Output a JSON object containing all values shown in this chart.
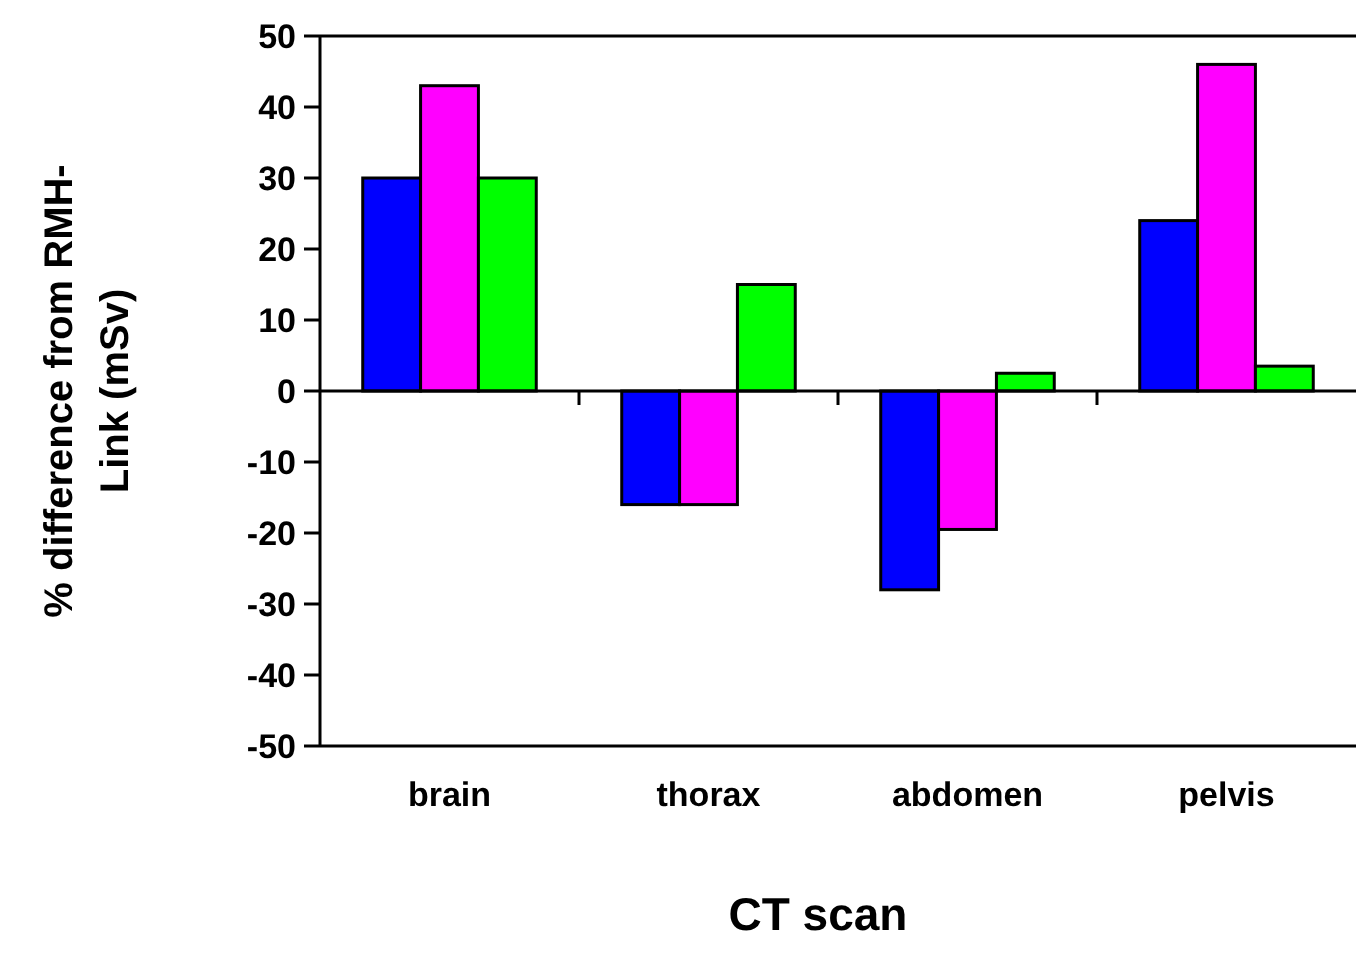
{
  "chart_data": {
    "type": "bar",
    "xlabel": "CT scan",
    "ylabel": "% difference from RMH-Link (mSv)",
    "categories": [
      "brain",
      "thorax",
      "abdomen",
      "pelvis"
    ],
    "series": [
      {
        "color": "#0000ff",
        "values": [
          30,
          -16,
          -28,
          24
        ]
      },
      {
        "color": "#ff00ff",
        "values": [
          43,
          -16,
          -19.5,
          46
        ]
      },
      {
        "color": "#00ff00",
        "values": [
          30,
          15,
          2.5,
          3.5
        ]
      }
    ],
    "ylim": [
      -50,
      50
    ],
    "yticks": [
      {
        "value": -50,
        "label": "-50"
      },
      {
        "value": -40,
        "label": "-40"
      },
      {
        "value": -30,
        "label": "-30"
      },
      {
        "value": -20,
        "label": "-20"
      },
      {
        "value": -10,
        "label": "-10"
      },
      0,
      10,
      20,
      30,
      40,
      50
    ]
  }
}
